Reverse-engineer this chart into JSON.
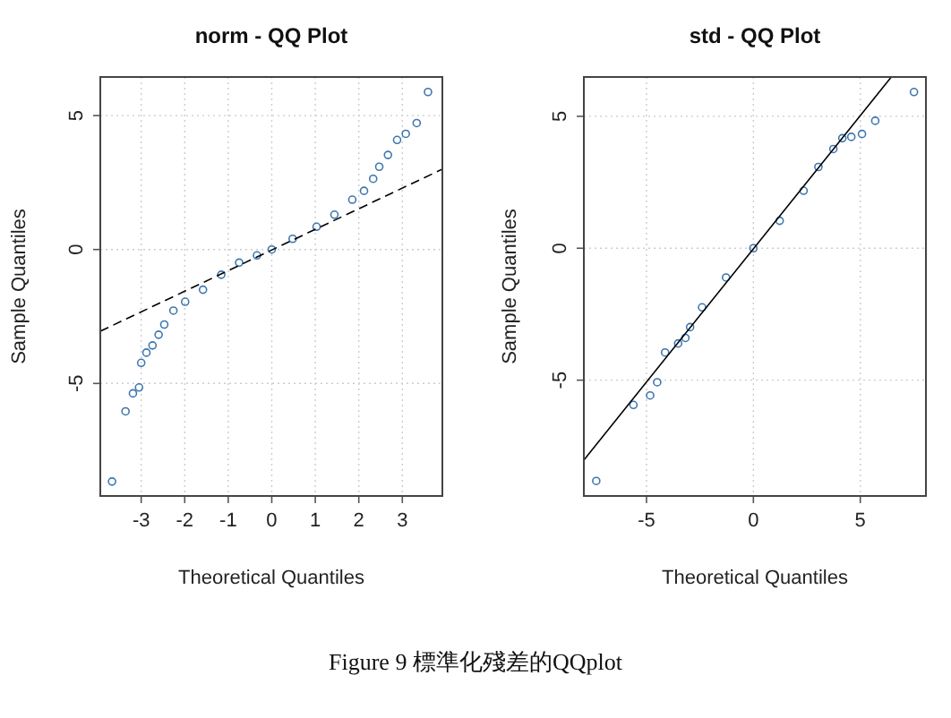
{
  "chart_data": [
    {
      "type": "scatter",
      "title": "norm - QQ Plot",
      "xlabel": "Theoretical Quantiles",
      "ylabel": "Sample Quantiles",
      "xlim": [
        -3.94,
        3.92
      ],
      "ylim": [
        -9.2,
        6.44
      ],
      "xticks": [
        -3,
        -2,
        -1,
        0,
        1,
        2,
        3
      ],
      "yticks": [
        -5,
        0,
        5
      ],
      "grid": true,
      "annotations": [
        "Figure 9 標準化殘差的QQplot"
      ],
      "series": [
        {
          "marker": "circle",
          "color": "#3d76b0",
          "x": [
            -3.67,
            -3.36,
            -3.19,
            -3.05,
            -3.0,
            -2.88,
            -2.74,
            -2.6,
            -2.47,
            -2.26,
            -1.99,
            -1.58,
            -1.16,
            -0.75,
            -0.34,
            0,
            0.48,
            1.03,
            1.44,
            1.85,
            2.12,
            2.33,
            2.47,
            2.67,
            2.88,
            3.08,
            3.33,
            3.59
          ],
          "values": [
            -8.66,
            -6.04,
            -5.37,
            -5.15,
            -4.23,
            -3.85,
            -3.58,
            -3.18,
            -2.8,
            -2.28,
            -1.95,
            -1.5,
            -0.94,
            -0.49,
            -0.22,
            0,
            0.4,
            0.85,
            1.3,
            1.86,
            2.19,
            2.64,
            3.09,
            3.53,
            4.09,
            4.32,
            4.72,
            5.88
          ]
        },
        {
          "type": "line",
          "marker": "none",
          "color": "#000000",
          "line_style": "dashed",
          "x": [
            -3.94,
            3.92
          ],
          "values": [
            -3.05,
            3.0
          ]
        }
      ]
    },
    {
      "type": "scatter",
      "title": "std - QQ Plot",
      "xlabel": "Theoretical Quantiles",
      "ylabel": "Sample Quantiles",
      "xlim": [
        -7.93,
        8.07
      ],
      "ylim": [
        -9.39,
        6.49
      ],
      "xticks": [
        -5,
        0,
        5
      ],
      "yticks": [
        -5,
        0,
        5
      ],
      "grid": true,
      "series": [
        {
          "marker": "circle",
          "color": "#3d76b0",
          "x": [
            -7.35,
            -5.61,
            -4.83,
            -4.5,
            -4.13,
            -3.52,
            -3.18,
            -2.96,
            -2.4,
            -1.28,
            0,
            1.23,
            2.35,
            3.04,
            3.74,
            4.16,
            4.58,
            5.08,
            5.7,
            7.51
          ],
          "values": [
            -8.82,
            -5.94,
            -5.58,
            -5.08,
            -3.95,
            -3.61,
            -3.4,
            -2.99,
            -2.24,
            -1.11,
            0,
            1.04,
            2.18,
            3.08,
            3.76,
            4.17,
            4.22,
            4.33,
            4.83,
            5.92
          ]
        },
        {
          "type": "line",
          "marker": "none",
          "color": "#000000",
          "line_style": "solid",
          "x": [
            -7.93,
            6.45
          ],
          "values": [
            -8.03,
            6.49
          ]
        }
      ]
    }
  ]
}
